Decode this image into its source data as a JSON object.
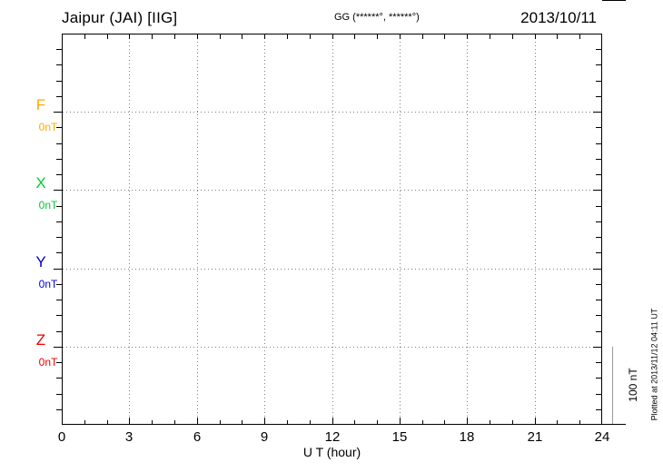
{
  "header": {
    "station_title": "Jaipur (JAI)  [IIG]",
    "coords_label": "GG (******°, ******°)",
    "date": "2013/10/11"
  },
  "chart_data": {
    "type": "line",
    "title": "Jaipur (JAI) [IIG] magnetogram",
    "date": "2013/10/11",
    "xlabel": "U T (hour)",
    "x_range": [
      0,
      24
    ],
    "x_tick_labels": [
      "0",
      "3",
      "6",
      "9",
      "12",
      "15",
      "18",
      "21",
      "24"
    ],
    "x_minor_tick_step_hours": 1,
    "grid": "dotted",
    "grid_hours": [
      3,
      6,
      9,
      12,
      15,
      18,
      21
    ],
    "y_minor_ticks_per_band": 5,
    "series": [
      {
        "name": "F",
        "value_label": "0nT",
        "color": "#ffaa00",
        "values": []
      },
      {
        "name": "X",
        "value_label": "0nT",
        "color": "#00cc33",
        "values": []
      },
      {
        "name": "Y",
        "value_label": "0nT",
        "color": "#0000dd",
        "values": []
      },
      {
        "name": "Z",
        "value_label": "0nT",
        "color": "#ee0000",
        "values": []
      }
    ],
    "scale_bar": {
      "label": "100 nT"
    }
  },
  "footer": {
    "plotted_at": "Plotted at 2013/11/12 04:11 UT"
  }
}
